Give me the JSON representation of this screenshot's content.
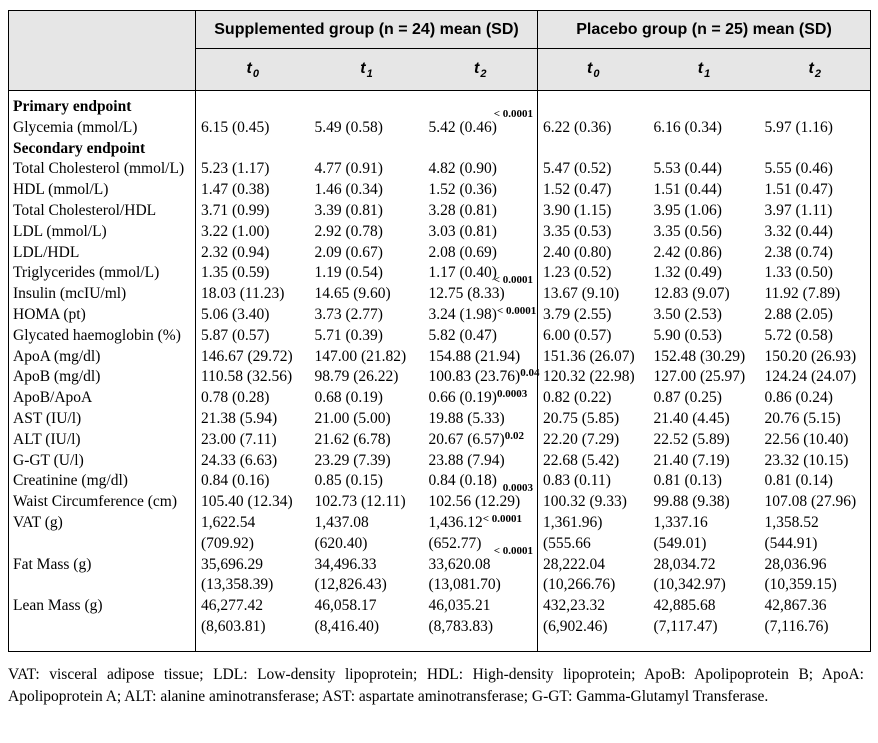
{
  "table": {
    "groups": [
      {
        "label": "Supplemented group (n = 24) mean (SD)"
      },
      {
        "label": "Placebo group (n = 25) mean (SD)"
      }
    ],
    "time_points": [
      {
        "base": "t",
        "sub": "0"
      },
      {
        "base": "t",
        "sub": "1"
      },
      {
        "base": "t",
        "sub": "2"
      }
    ],
    "rows": [
      {
        "label": "Primary endpoint",
        "bold": true,
        "cells": []
      },
      {
        "label": "Glycemia (mmol/L)",
        "cells": [
          {
            "v": "6.15 (0.45)"
          },
          {
            "v": "5.49 (0.58)"
          },
          {
            "v": "5.42 (0.46)",
            "sup_above": "< 0.0001"
          },
          {
            "v": "6.22 (0.36)"
          },
          {
            "v": "6.16 (0.34)"
          },
          {
            "v": "5.97 (1.16)"
          }
        ]
      },
      {
        "label": "Secondary endpoint",
        "bold": true,
        "cells": []
      },
      {
        "label": "Total Cholesterol (mmol/L)",
        "cells": [
          {
            "v": "5.23 (1.17)"
          },
          {
            "v": "4.77 (0.91)"
          },
          {
            "v": "4.82 (0.90)"
          },
          {
            "v": "5.47 (0.52)"
          },
          {
            "v": "5.53 (0.44)"
          },
          {
            "v": "5.55 (0.46)"
          }
        ]
      },
      {
        "label": "HDL (mmol/L)",
        "cells": [
          {
            "v": "1.47 (0.38)"
          },
          {
            "v": "1.46 (0.34)"
          },
          {
            "v": "1.52 (0.36)"
          },
          {
            "v": "1.52 (0.47)"
          },
          {
            "v": "1.51 (0.44)"
          },
          {
            "v": "1.51 (0.47)"
          }
        ]
      },
      {
        "label": "Total Cholesterol/HDL",
        "cells": [
          {
            "v": "3.71 (0.99)"
          },
          {
            "v": "3.39 (0.81)"
          },
          {
            "v": "3.28 (0.81)"
          },
          {
            "v": "3.90 (1.15)"
          },
          {
            "v": "3.95 (1.06)"
          },
          {
            "v": "3.97 (1.11)"
          }
        ]
      },
      {
        "label": "LDL (mmol/L)",
        "cells": [
          {
            "v": "3.22 (1.00)"
          },
          {
            "v": "2.92 (0.78)"
          },
          {
            "v": "3.03 (0.81)"
          },
          {
            "v": "3.35 (0.53)"
          },
          {
            "v": "3.35 (0.56)"
          },
          {
            "v": "3.32 (0.44)"
          }
        ]
      },
      {
        "label": "LDL/HDL",
        "cells": [
          {
            "v": "2.32 (0.94)"
          },
          {
            "v": "2.09 (0.67)"
          },
          {
            "v": "2.08 (0.69)"
          },
          {
            "v": "2.40 (0.80)"
          },
          {
            "v": "2.42 (0.86)"
          },
          {
            "v": "2.38 (0.74)"
          }
        ]
      },
      {
        "label": "Triglycerides (mmol/L)",
        "cells": [
          {
            "v": "1.35 (0.59)"
          },
          {
            "v": "1.19 (0.54)"
          },
          {
            "v": "1.17 (0.40)"
          },
          {
            "v": "1.23 (0.52)"
          },
          {
            "v": "1.32 (0.49)"
          },
          {
            "v": "1.33 (0.50)"
          }
        ]
      },
      {
        "label": "Insulin (mcIU/ml)",
        "cells": [
          {
            "v": "18.03 (11.23)"
          },
          {
            "v": "14.65 (9.60)"
          },
          {
            "v": "12.75 (8.33)",
            "sup_above": "< 0.0001"
          },
          {
            "v": "13.67 (9.10)"
          },
          {
            "v": "12.83 (9.07)"
          },
          {
            "v": "11.92 (7.89)"
          }
        ]
      },
      {
        "label": "HOMA (pt)",
        "cells": [
          {
            "v": "5.06 (3.40)"
          },
          {
            "v": "3.73 (2.77)"
          },
          {
            "v": "3.24 (1.98)",
            "sup": "< 0.0001"
          },
          {
            "v": "3.79 (2.55)"
          },
          {
            "v": "3.50 (2.53)"
          },
          {
            "v": "2.88 (2.05)"
          }
        ]
      },
      {
        "label": "Glycated haemoglobin (%)",
        "cells": [
          {
            "v": "5.87 (0.57)"
          },
          {
            "v": "5.71 (0.39)"
          },
          {
            "v": "5.82 (0.47)"
          },
          {
            "v": "6.00 (0.57)"
          },
          {
            "v": "5.90 (0.53)"
          },
          {
            "v": "5.72 (0.58)"
          }
        ]
      },
      {
        "label": "ApoA (mg/dl)",
        "cells": [
          {
            "v": "146.67 (29.72)"
          },
          {
            "v": "147.00 (21.82)"
          },
          {
            "v": "154.88 (21.94)"
          },
          {
            "v": "151.36 (26.07)"
          },
          {
            "v": "152.48 (30.29)"
          },
          {
            "v": "150.20 (26.93)"
          }
        ]
      },
      {
        "label": "ApoB (mg/dl)",
        "cells": [
          {
            "v": "110.58 (32.56)"
          },
          {
            "v": "98.79 (26.22)"
          },
          {
            "v": "100.83 (23.76)",
            "sup": "0.04"
          },
          {
            "v": "120.32 (22.98)"
          },
          {
            "v": "127.00 (25.97)"
          },
          {
            "v": "124.24 (24.07)"
          }
        ]
      },
      {
        "label": "ApoB/ApoA",
        "cells": [
          {
            "v": "0.78 (0.28)"
          },
          {
            "v": "0.68 (0.19)"
          },
          {
            "v": "0.66 (0.19)",
            "sup": "0.0003"
          },
          {
            "v": "0.82 (0.22)"
          },
          {
            "v": "0.87 (0.25)"
          },
          {
            "v": "0.86 (0.24)"
          }
        ]
      },
      {
        "label": "AST (IU/l)",
        "cells": [
          {
            "v": "21.38 (5.94)"
          },
          {
            "v": "21.00 (5.00)"
          },
          {
            "v": "19.88 (5.33)"
          },
          {
            "v": "20.75 (5.85)"
          },
          {
            "v": "21.40 (4.45)"
          },
          {
            "v": "20.76 (5.15)"
          }
        ]
      },
      {
        "label": "ALT (IU/l)",
        "cells": [
          {
            "v": "23.00 (7.11)"
          },
          {
            "v": "21.62 (6.78)"
          },
          {
            "v": "20.67 (6.57)",
            "sup": "0.02"
          },
          {
            "v": "22.20 (7.29)"
          },
          {
            "v": "22.52 (5.89)"
          },
          {
            "v": "22.56 (10.40)"
          }
        ]
      },
      {
        "label": "G-GT (U/l)",
        "cells": [
          {
            "v": "24.33 (6.63)"
          },
          {
            "v": "23.29 (7.39)"
          },
          {
            "v": "23.88 (7.94)"
          },
          {
            "v": "22.68 (5.42)"
          },
          {
            "v": "21.40 (7.19)"
          },
          {
            "v": "23.32 (10.15)"
          }
        ]
      },
      {
        "label": "Creatinine (mg/dl)",
        "cells": [
          {
            "v": "0.84 (0.16)"
          },
          {
            "v": "0.85 (0.15)"
          },
          {
            "v": "0.84 (0.18)"
          },
          {
            "v": "0.83 (0.11)"
          },
          {
            "v": "0.81 (0.13)"
          },
          {
            "v": "0.81 (0.14)"
          }
        ]
      },
      {
        "label": "Waist Circumference (cm)",
        "cells": [
          {
            "v": "105.40 (12.34)"
          },
          {
            "v": "102.73 (12.11)"
          },
          {
            "v": "102.56 (12.29)",
            "sup_above": "0.0003"
          },
          {
            "v": "100.32 (9.33)"
          },
          {
            "v": "99.88 (9.38)"
          },
          {
            "v": "107.08 (27.96)"
          }
        ]
      },
      {
        "label": "VAT (g)",
        "cells": [
          {
            "v": "1,622.54",
            "v2": "(709.92)"
          },
          {
            "v": "1,437.08",
            "v2": "(620.40)"
          },
          {
            "v": "1,436.12",
            "sup": "< 0.0001",
            "v2": "(652.77)"
          },
          {
            "v": "1,361.96)",
            "v2": "(555.66"
          },
          {
            "v": "1,337.16",
            "v2": "(549.01)"
          },
          {
            "v": "1,358.52",
            "v2": "(544.91)"
          }
        ]
      },
      {
        "label": "Fat Mass (g)",
        "cells": [
          {
            "v": "35,696.29",
            "v2": "(13,358.39)"
          },
          {
            "v": "34,496.33",
            "v2": "(12,826.43)"
          },
          {
            "v": "33,620.08",
            "sup_above": "< 0.0001",
            "v2": "(13,081.70)"
          },
          {
            "v": "28,222.04",
            "v2": "(10,266.76)"
          },
          {
            "v": "28,034.72",
            "v2": "(10,342.97)"
          },
          {
            "v": "28,036.96",
            "v2": "(10,359.15)"
          }
        ]
      },
      {
        "label": "Lean Mass (g)",
        "cells": [
          {
            "v": "46,277.42",
            "v2": "(8,603.81)"
          },
          {
            "v": "46,058.17",
            "v2": "(8,416.40)"
          },
          {
            "v": "46,035.21",
            "v2": "(8,783.83)"
          },
          {
            "v": "432,23.32",
            "v2": "(6,902.46)"
          },
          {
            "v": "42,885.68",
            "v2": "(7,117.47)"
          },
          {
            "v": "42,867.36",
            "v2": "(7,116.76)"
          }
        ]
      }
    ]
  },
  "footnote": "VAT: visceral adipose tissue; LDL: Low-density lipoprotein; HDL: High-density lipoprotein; ApoB: Apolipoprotein B; ApoA: Apolipoprotein A; ALT: alanine aminotransferase; AST: aspartate aminotransferase; G-GT: Gamma-Glutamyl Transferase."
}
